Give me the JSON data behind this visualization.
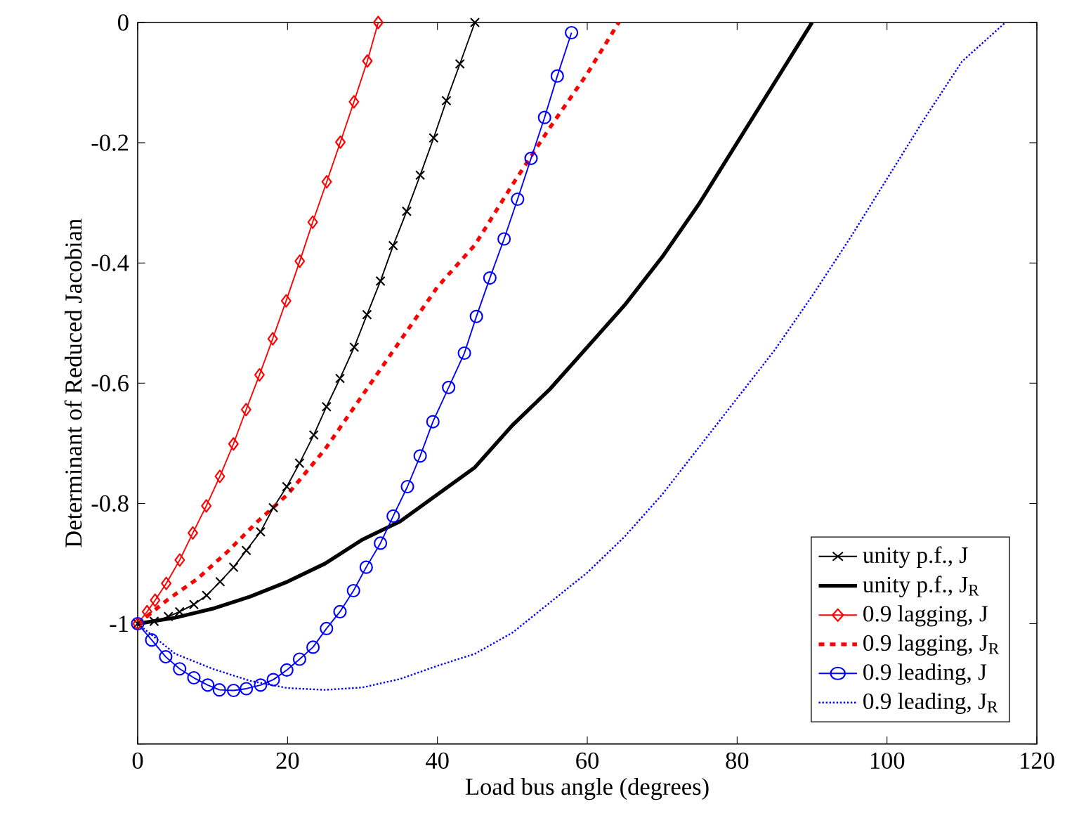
{
  "chart_data": {
    "type": "line",
    "xlabel": "Load bus angle (degrees)",
    "ylabel": "Determinant of Reduced Jacobian",
    "xlim": [
      0,
      120
    ],
    "ylim": [
      -1.2,
      0
    ],
    "xticks": [
      0,
      20,
      40,
      60,
      80,
      100,
      120
    ],
    "yticks": [
      {
        "value": -1.2,
        "label": null
      },
      -1,
      -0.8,
      -0.6,
      -0.4,
      -0.2,
      0
    ],
    "legend": "bottom right",
    "series": [
      {
        "name": "unity p.f., J",
        "color": "#000000",
        "marker": "cross",
        "line_style": "solid",
        "x": [
          0,
          2.2,
          4.1,
          5.6,
          7.5,
          9.2,
          11,
          12.8,
          14.5,
          16.4,
          18.1,
          19.9,
          21.6,
          23.5,
          25.2,
          27,
          28.9,
          30.6,
          32.4,
          34.1,
          35.9,
          37.7,
          39.5,
          41.2,
          43,
          45
        ],
        "values": [
          -1,
          -0.996,
          -0.988,
          -0.98,
          -0.968,
          -0.953,
          -0.93,
          -0.906,
          -0.878,
          -0.847,
          -0.807,
          -0.772,
          -0.733,
          -0.686,
          -0.639,
          -0.592,
          -0.54,
          -0.486,
          -0.43,
          -0.371,
          -0.314,
          -0.254,
          -0.192,
          -0.13,
          -0.069,
          0
        ]
      },
      {
        "name": "unity p.f., J$_{R}$",
        "color": "#000000",
        "marker": "none",
        "line_style": "solid",
        "x": [
          0,
          5,
          10,
          15,
          20,
          25,
          30,
          35,
          40,
          45,
          50,
          55,
          60,
          65,
          70,
          75,
          80,
          85,
          90
        ],
        "values": [
          -1,
          -0.99,
          -0.975,
          -0.955,
          -0.93,
          -0.9,
          -0.86,
          -0.83,
          -0.785,
          -0.74,
          -0.67,
          -0.61,
          -0.54,
          -0.47,
          -0.39,
          -0.3,
          -0.2,
          -0.1,
          0
        ]
      },
      {
        "name": "0.9 lagging, J",
        "color": "#ff0000",
        "marker": "diamond",
        "line_style": "solid",
        "x": [
          0,
          1.25,
          2.32,
          3.81,
          5.61,
          7.36,
          9.16,
          10.97,
          12.78,
          14.47,
          16.26,
          18.02,
          19.81,
          21.63,
          23.36,
          25.23,
          27.05,
          28.86,
          30.65,
          32.1
        ],
        "values": [
          -1,
          -0.98,
          -0.961,
          -0.933,
          -0.894,
          -0.849,
          -0.804,
          -0.755,
          -0.701,
          -0.644,
          -0.586,
          -0.526,
          -0.463,
          -0.397,
          -0.332,
          -0.265,
          -0.199,
          -0.132,
          -0.064,
          0
        ]
      },
      {
        "name": "0.9 lagging, J$_{R}$",
        "color": "#ff0000",
        "marker": "none",
        "line_style": "dashed",
        "x": [
          0,
          4,
          8,
          12,
          16,
          20,
          25,
          30,
          35,
          40,
          45,
          50,
          55,
          60,
          64.2
        ],
        "values": [
          -1,
          -0.96,
          -0.925,
          -0.88,
          -0.83,
          -0.785,
          -0.71,
          -0.62,
          -0.53,
          -0.44,
          -0.37,
          -0.27,
          -0.175,
          -0.085,
          0
        ]
      },
      {
        "name": "0.9 leading, J",
        "color": "#0000ff",
        "marker": "circle",
        "line_style": "solid",
        "x": [
          0,
          1.87,
          3.74,
          5.6,
          7.5,
          9.35,
          10.9,
          12.8,
          14.5,
          16.4,
          18.1,
          19.9,
          21.6,
          23.4,
          25.2,
          27,
          28.8,
          30.5,
          32.4,
          34.1,
          36,
          37.7,
          39.4,
          41.5,
          43.6,
          45.2,
          47,
          48.9,
          50.7,
          52.5,
          54.3,
          56,
          57.9
        ],
        "values": [
          -1,
          -1.027,
          -1.055,
          -1.075,
          -1.09,
          -1.102,
          -1.11,
          -1.111,
          -1.108,
          -1.102,
          -1.093,
          -1.077,
          -1.059,
          -1.039,
          -1.008,
          -0.98,
          -0.945,
          -0.906,
          -0.866,
          -0.821,
          -0.772,
          -0.721,
          -0.664,
          -0.607,
          -0.55,
          -0.489,
          -0.425,
          -0.36,
          -0.294,
          -0.226,
          -0.158,
          -0.089,
          -0.017
        ]
      },
      {
        "name": "0.9 leading, J$_{R}$",
        "color": "#0000ff",
        "marker": "none",
        "line_style": "dotted",
        "x": [
          0,
          5,
          10,
          15,
          20,
          25,
          30,
          35,
          40,
          45,
          50,
          55,
          60,
          65,
          70,
          75,
          80,
          85,
          90,
          95,
          100,
          105,
          110,
          115.8
        ],
        "values": [
          -1,
          -1.05,
          -1.075,
          -1.095,
          -1.107,
          -1.11,
          -1.106,
          -1.092,
          -1.07,
          -1.05,
          -1.015,
          -0.965,
          -0.915,
          -0.855,
          -0.785,
          -0.705,
          -0.625,
          -0.545,
          -0.455,
          -0.36,
          -0.26,
          -0.16,
          -0.065,
          0
        ]
      }
    ]
  }
}
